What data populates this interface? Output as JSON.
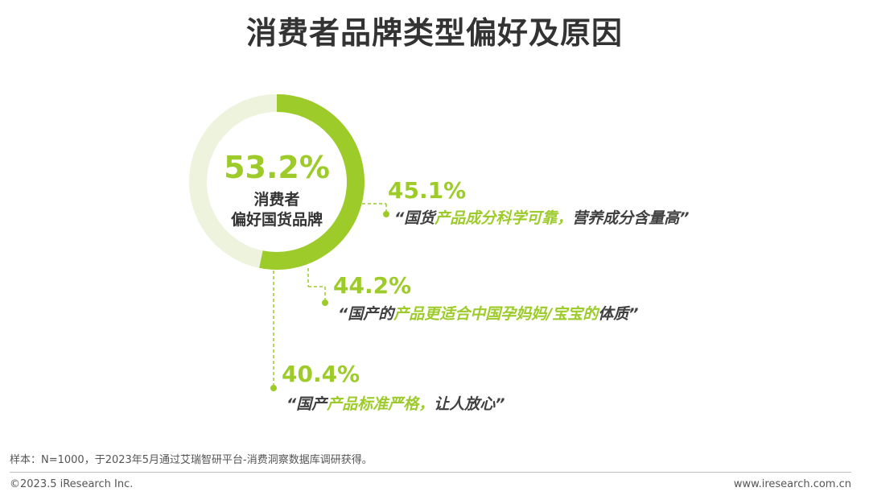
{
  "title": "消费者品牌类型偏好及原因",
  "colors": {
    "accent": "#9CCB2A",
    "ring_background": "#EEF3DD",
    "text_dark": "#404040"
  },
  "chart_data": {
    "type": "pie",
    "title": "消费者品牌类型偏好及原因",
    "center_value_label": "53.2%",
    "center_label_line1": "消费者",
    "center_label_line2": "偏好国货品牌",
    "value_percent": 53.2,
    "reasons": [
      {
        "value_label": "45.1%",
        "text_open": "“",
        "text_before": "国货",
        "text_highlight": "产品成分科学可靠，",
        "text_after": "营养成分含量高",
        "text_close": "”"
      },
      {
        "value_label": "44.2%",
        "text_open": "“",
        "text_before": "国产的",
        "text_highlight": "产品更适合中国孕妈妈/宝宝的",
        "text_after": "体质",
        "text_close": "”"
      },
      {
        "value_label": "40.4%",
        "text_open": "“",
        "text_before": "国产",
        "text_highlight": "产品标准严格，",
        "text_after": "让人放心",
        "text_close": "”"
      }
    ]
  },
  "footer": {
    "note": "样本：N=1000，于2023年5月通过艾瑞智研平台-消费洞察数据库调研获得。",
    "copyright": "©2023.5 iResearch Inc.",
    "website": "www.iresearch.com.cn"
  }
}
